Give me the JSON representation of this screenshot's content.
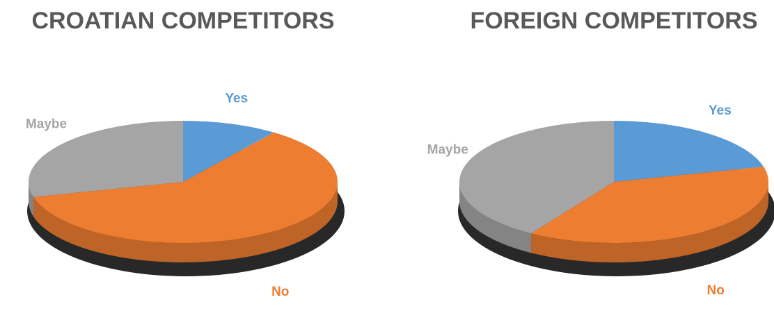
{
  "chart_data": [
    {
      "type": "pie",
      "title": "CROATIAN COMPETITORS",
      "categories": [
        "Yes",
        "No",
        "Maybe"
      ],
      "values": [
        10,
        61,
        29
      ],
      "colors": [
        "#5b9bd5",
        "#ed7d31",
        "#a5a5a5"
      ]
    },
    {
      "type": "pie",
      "title": "FOREIGN COMPETITORS",
      "categories": [
        "Yes",
        "No",
        "Maybe"
      ],
      "values": [
        21,
        38,
        41
      ],
      "colors": [
        "#5b9bd5",
        "#ed7d31",
        "#a5a5a5"
      ]
    }
  ]
}
